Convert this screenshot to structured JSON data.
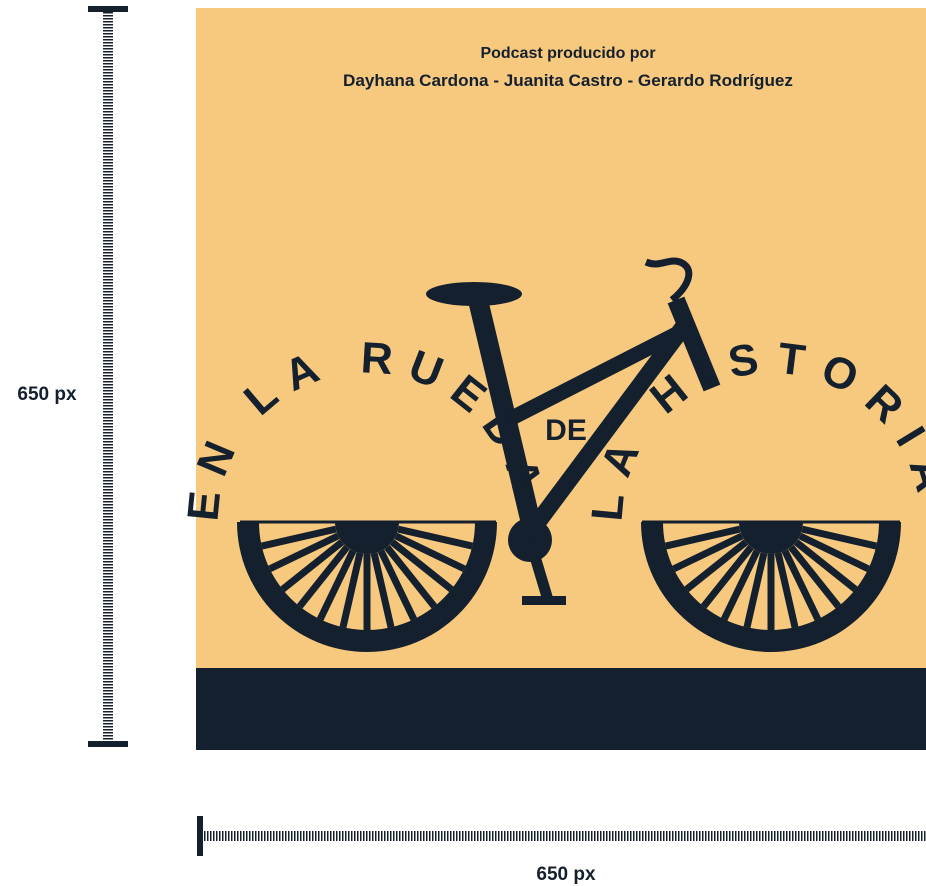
{
  "ruler": {
    "height_label": "650 px",
    "width_label": "650 px"
  },
  "poster": {
    "credit_intro": "Podcast producido por",
    "credits": "Dayhana Cardona - Juanita Castro - Gerardo Rodríguez",
    "title_left": "EN LA RUEDA",
    "title_middle": "DE",
    "title_right": "LA HISTORIA"
  }
}
